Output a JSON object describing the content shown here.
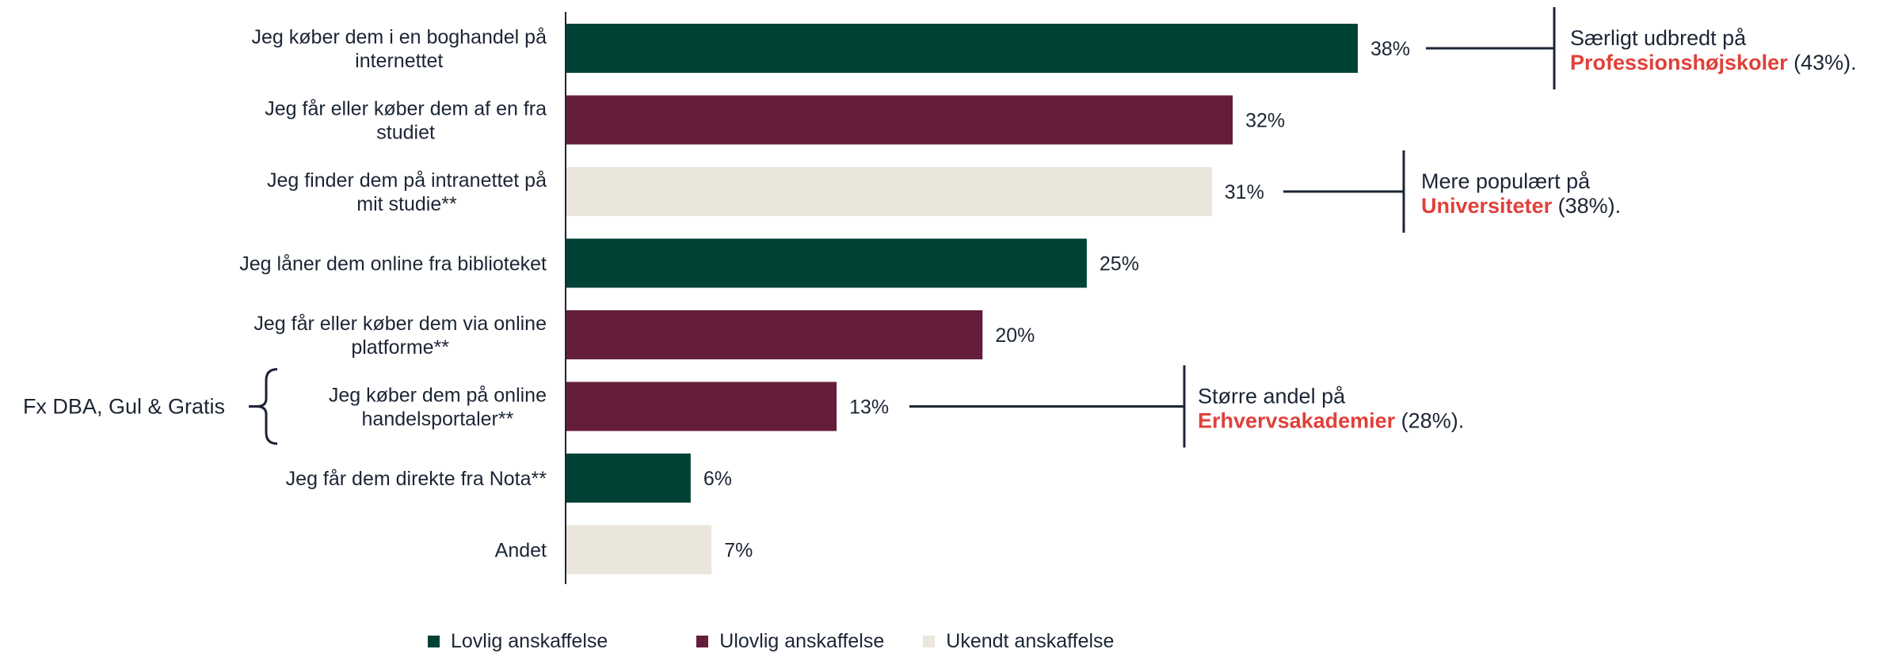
{
  "colors": {
    "lovlig": "#004236",
    "ulovlig": "#641e3c",
    "ukendt": "#ebe6dc",
    "highlight": "#e0403a",
    "text": "#1c2535"
  },
  "chart_data": {
    "type": "bar",
    "orientation": "horizontal",
    "categories": [
      [
        "Jeg køber dem i en boghandel på",
        "internettet"
      ],
      [
        "Jeg får eller køber dem af en fra",
        "studiet"
      ],
      [
        "Jeg finder dem på intranettet på",
        "mit studie**"
      ],
      [
        "Jeg låner dem online fra biblioteket"
      ],
      [
        "Jeg får eller køber dem via online",
        "platforme**"
      ],
      [
        "Jeg køber dem på online",
        "handelsportaler**"
      ],
      [
        "Jeg får dem direkte fra Nota**"
      ],
      [
        "Andet"
      ]
    ],
    "values": [
      38,
      32,
      31,
      25,
      20,
      13,
      6,
      7
    ],
    "value_labels": [
      "38%",
      "32%",
      "31%",
      "25%",
      "20%",
      "13%",
      "6%",
      "7%"
    ],
    "bar_group": [
      "lovlig",
      "ulovlig",
      "ukendt",
      "lovlig",
      "ulovlig",
      "ulovlig",
      "lovlig",
      "ukendt"
    ],
    "xlim": [
      0,
      40
    ],
    "grid": false,
    "legend": {
      "placement": "bottom",
      "entries": [
        {
          "key": "lovlig",
          "label": "Lovlig anskaffelse"
        },
        {
          "key": "ulovlig",
          "label": "Ulovlig anskaffelse"
        },
        {
          "key": "ukendt",
          "label": "Ukendt anskaffelse"
        }
      ]
    },
    "annotations": [
      {
        "bar": 0,
        "line1": "Særligt udbredt på",
        "highlight": "Professionshøjskoler",
        "rest": " (43%)."
      },
      {
        "bar": 2,
        "line1": "Mere populært på",
        "highlight": "Universiteter",
        "rest": " (38%)."
      },
      {
        "bar": 5,
        "line1": "Større andel på",
        "highlight": "Erhvervsakademier",
        "rest": " (28%)."
      }
    ],
    "brace_note": {
      "bar": 5,
      "text": "Fx DBA, Gul & Gratis"
    }
  }
}
